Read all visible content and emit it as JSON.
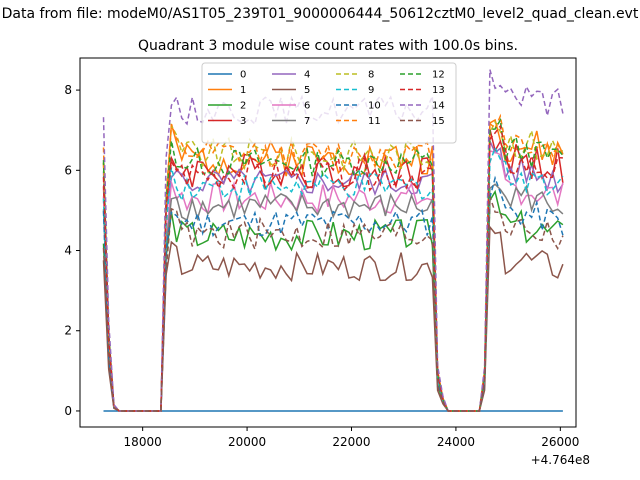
{
  "figure": {
    "suptitle": "Data from file: modeM0/AS1T05_239T01_9000006444_50612cztM0_level2_quad_clean.evt"
  },
  "chart_data": {
    "type": "line",
    "title": "Quadrant 3 module wise count rates with 100.0s bins.",
    "xlabel": "",
    "ylabel": "",
    "x_offset_label": "+4.764e8",
    "xlim": [
      16800,
      26300
    ],
    "ylim": [
      -0.4,
      8.8
    ],
    "x_ticks": [
      18000,
      20000,
      22000,
      24000,
      26000
    ],
    "x_tick_labels": [
      "18000",
      "20000",
      "22000",
      "24000",
      "26000"
    ],
    "y_ticks": [
      0,
      2,
      4,
      6,
      8
    ],
    "y_tick_labels": [
      "0",
      "2",
      "4",
      "6",
      "8"
    ],
    "grid": false,
    "legend_position": "upper center",
    "legend_columns": 4,
    "colors": [
      "#1f77b4",
      "#ff7f0e",
      "#2ca02c",
      "#d62728",
      "#9467bd",
      "#8c564b",
      "#e377c2",
      "#7f7f7f",
      "#bcbd22",
      "#17becf"
    ],
    "series": [
      {
        "name": "0",
        "style": "solid",
        "level": 0,
        "amp": 0,
        "seed": 1
      },
      {
        "name": "1",
        "style": "solid",
        "level": 6.3,
        "amp": 0.45,
        "seed": 2
      },
      {
        "name": "2",
        "style": "solid",
        "level": 4.4,
        "amp": 0.4,
        "seed": 3
      },
      {
        "name": "3",
        "style": "solid",
        "level": 6.0,
        "amp": 0.45,
        "seed": 4
      },
      {
        "name": "4",
        "style": "solid",
        "level": 5.7,
        "amp": 0.35,
        "seed": 5
      },
      {
        "name": "5",
        "style": "solid",
        "level": 3.6,
        "amp": 0.35,
        "seed": 6
      },
      {
        "name": "6",
        "style": "solid",
        "level": 5.3,
        "amp": 0.4,
        "seed": 7
      },
      {
        "name": "7",
        "style": "solid",
        "level": 5.1,
        "amp": 0.35,
        "seed": 8
      },
      {
        "name": "8",
        "style": "dashed",
        "level": 6.4,
        "amp": 0.4,
        "seed": 9
      },
      {
        "name": "9",
        "style": "dashed",
        "level": 5.6,
        "amp": 0.35,
        "seed": 10
      },
      {
        "name": "10",
        "style": "dashed",
        "level": 4.7,
        "amp": 0.35,
        "seed": 11
      },
      {
        "name": "11",
        "style": "dashed",
        "level": 6.4,
        "amp": 0.35,
        "seed": 12
      },
      {
        "name": "12",
        "style": "dashed",
        "level": 6.2,
        "amp": 0.35,
        "seed": 13
      },
      {
        "name": "13",
        "style": "dashed",
        "level": 5.9,
        "amp": 0.4,
        "seed": 14
      },
      {
        "name": "14",
        "style": "dashed",
        "level": 7.5,
        "amp": 0.35,
        "seed": 15
      },
      {
        "name": "15",
        "style": "dashed",
        "level": 4.4,
        "amp": 0.4,
        "seed": 16
      }
    ]
  }
}
